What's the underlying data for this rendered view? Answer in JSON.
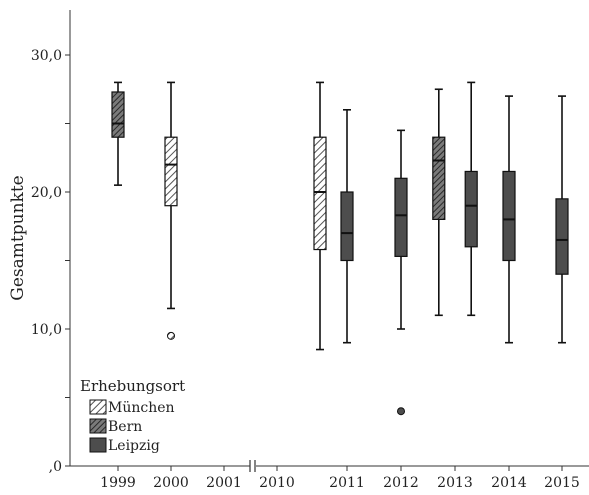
{
  "chart_data": {
    "type": "boxplot",
    "ylabel": "Gesamtpunkte",
    "xlabel": "",
    "ylim": [
      0,
      33
    ],
    "y_ticks": [
      {
        "value": 0,
        "label": ",0"
      },
      {
        "value": 10,
        "label": "10,0"
      },
      {
        "value": 20,
        "label": "20,0"
      },
      {
        "value": 30,
        "label": "30,0"
      }
    ],
    "x_categories": [
      "1999",
      "2000",
      "2001",
      "2010",
      "2011",
      "2012",
      "2013",
      "2014",
      "2015"
    ],
    "axis_break_between": [
      "2001",
      "2010"
    ],
    "legend": {
      "title": "Erhebungsort",
      "entries": [
        {
          "name": "München",
          "pattern": "hatch-light"
        },
        {
          "name": "Bern",
          "pattern": "hatch-dark"
        },
        {
          "name": "Leipzig",
          "pattern": "solid-dark"
        }
      ]
    },
    "boxes": [
      {
        "category": "1999",
        "series": "Bern",
        "offset": 0,
        "min": 20.5,
        "q1": 24,
        "median": 25,
        "q3": 27.3,
        "max": 28,
        "outliers": []
      },
      {
        "category": "2000",
        "series": "München",
        "offset": 0,
        "min": 11.5,
        "q1": 19,
        "median": 22,
        "q3": 24,
        "max": 28,
        "outliers": [
          9.5
        ]
      },
      {
        "category": "2011",
        "series": "München",
        "offset": -0.5,
        "min": 8.5,
        "q1": 15.8,
        "median": 20,
        "q3": 24,
        "max": 28,
        "outliers": []
      },
      {
        "category": "2011",
        "series": "Leipzig",
        "offset": 0,
        "min": 9,
        "q1": 15,
        "median": 17,
        "q3": 20,
        "max": 26,
        "outliers": []
      },
      {
        "category": "2012",
        "series": "Leipzig",
        "offset": 0,
        "min": 10,
        "q1": 15.3,
        "median": 18.3,
        "q3": 21,
        "max": 24.5,
        "outliers": [
          4
        ]
      },
      {
        "category": "2013",
        "series": "Bern",
        "offset": -0.3,
        "min": 11,
        "q1": 18,
        "median": 22.3,
        "q3": 24,
        "max": 27.5,
        "outliers": []
      },
      {
        "category": "2013",
        "series": "Leipzig",
        "offset": 0.3,
        "min": 11,
        "q1": 16,
        "median": 19,
        "q3": 21.5,
        "max": 28,
        "outliers": []
      },
      {
        "category": "2014",
        "series": "Leipzig",
        "offset": 0,
        "min": 9,
        "q1": 15,
        "median": 18,
        "q3": 21.5,
        "max": 27,
        "outliers": []
      },
      {
        "category": "2015",
        "series": "Leipzig",
        "offset": 0,
        "min": 9,
        "q1": 14,
        "median": 16.5,
        "q3": 19.5,
        "max": 27,
        "outliers": []
      }
    ]
  }
}
